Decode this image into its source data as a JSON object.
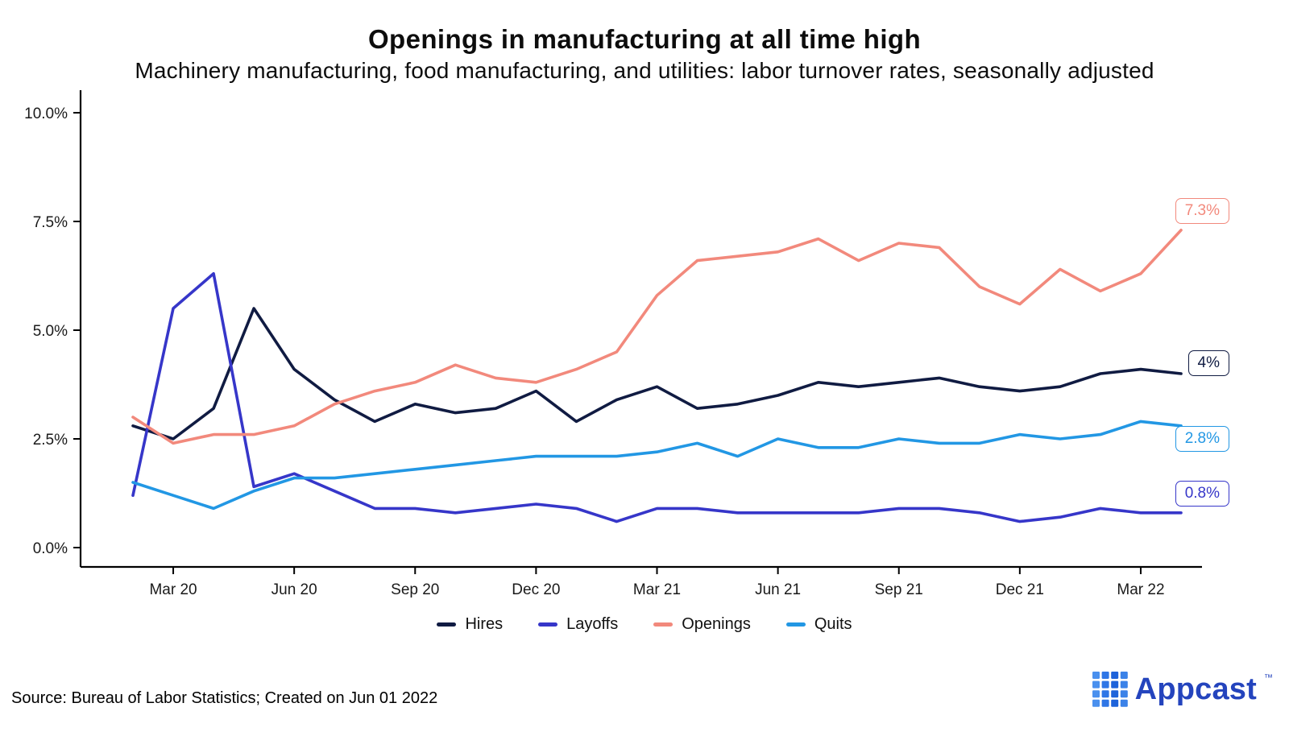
{
  "chart_data": {
    "type": "line",
    "title": "Openings in manufacturing at all time high",
    "subtitle": "Machinery manufacturing, food manufacturing, and utilities: labor turnover rates, seasonally adjusted",
    "x": [
      "Feb 20",
      "Mar 20",
      "Apr 20",
      "May 20",
      "Jun 20",
      "Jul 20",
      "Aug 20",
      "Sep 20",
      "Oct 20",
      "Nov 20",
      "Dec 20",
      "Jan 21",
      "Feb 21",
      "Mar 21",
      "Apr 21",
      "May 21",
      "Jun 21",
      "Jul 21",
      "Aug 21",
      "Sep 21",
      "Oct 21",
      "Nov 21",
      "Dec 21",
      "Jan 22",
      "Feb 22",
      "Mar 22",
      "Apr 22"
    ],
    "x_ticks": [
      {
        "label": "Mar 20",
        "index": 1
      },
      {
        "label": "Jun 20",
        "index": 4
      },
      {
        "label": "Sep 20",
        "index": 7
      },
      {
        "label": "Dec 20",
        "index": 10
      },
      {
        "label": "Mar 21",
        "index": 13
      },
      {
        "label": "Jun 21",
        "index": 16
      },
      {
        "label": "Sep 21",
        "index": 19
      },
      {
        "label": "Dec 21",
        "index": 22
      },
      {
        "label": "Mar 22",
        "index": 25
      }
    ],
    "ylim": [
      0,
      10
    ],
    "yticks": [
      {
        "label": "0.0%",
        "value": 0
      },
      {
        "label": "2.5%",
        "value": 2.5
      },
      {
        "label": "5.0%",
        "value": 5
      },
      {
        "label": "7.5%",
        "value": 7.5
      },
      {
        "label": "10.0%",
        "value": 10
      }
    ],
    "grid": false,
    "legend_position": "bottom",
    "axis_color": "#000000",
    "series": [
      {
        "name": "Hires",
        "color": "#101b42",
        "end_label": {
          "text": "4%",
          "value": 4.25
        },
        "values": [
          2.8,
          2.5,
          3.2,
          5.5,
          4.1,
          3.4,
          2.9,
          3.3,
          3.1,
          3.2,
          3.6,
          2.9,
          3.4,
          3.7,
          3.2,
          3.3,
          3.5,
          3.8,
          3.7,
          3.8,
          3.9,
          3.7,
          3.6,
          3.7,
          4.0,
          4.1,
          4.0
        ]
      },
      {
        "name": "Layoffs",
        "color": "#3636c9",
        "end_label": {
          "text": "0.8%",
          "value": 1.25
        },
        "values": [
          1.2,
          5.5,
          6.3,
          1.4,
          1.7,
          1.3,
          0.9,
          0.9,
          0.8,
          0.9,
          1.0,
          0.9,
          0.6,
          0.9,
          0.9,
          0.8,
          0.8,
          0.8,
          0.8,
          0.9,
          0.9,
          0.8,
          0.6,
          0.7,
          0.9,
          0.8,
          0.8
        ]
      },
      {
        "name": "Openings",
        "color": "#f2897c",
        "end_label": {
          "text": "7.3%",
          "value": 7.75
        },
        "values": [
          3.0,
          2.4,
          2.6,
          2.6,
          2.8,
          3.3,
          3.6,
          3.8,
          4.2,
          3.9,
          3.8,
          4.1,
          4.5,
          5.8,
          6.6,
          6.7,
          6.8,
          7.1,
          6.6,
          7.0,
          6.9,
          6.0,
          5.6,
          6.4,
          5.9,
          6.3,
          7.3
        ]
      },
      {
        "name": "Quits",
        "color": "#2297e4",
        "end_label": {
          "text": "2.8%",
          "value": 2.5
        },
        "values": [
          1.5,
          1.2,
          0.9,
          1.3,
          1.6,
          1.6,
          1.7,
          1.8,
          1.9,
          2.0,
          2.1,
          2.1,
          2.1,
          2.2,
          2.4,
          2.1,
          2.5,
          2.3,
          2.3,
          2.5,
          2.4,
          2.4,
          2.6,
          2.5,
          2.6,
          2.9,
          2.8
        ]
      }
    ]
  },
  "footer": {
    "source": "Source: Bureau of Labor Statistics; Created on Jun 01 2022",
    "brand": "Appcast",
    "brand_tm": "™",
    "brand_text_color": "#2444bd",
    "logo_colors": [
      "#4a90ee",
      "#2f76e6",
      "#1e63da",
      "#3b82e8"
    ]
  }
}
